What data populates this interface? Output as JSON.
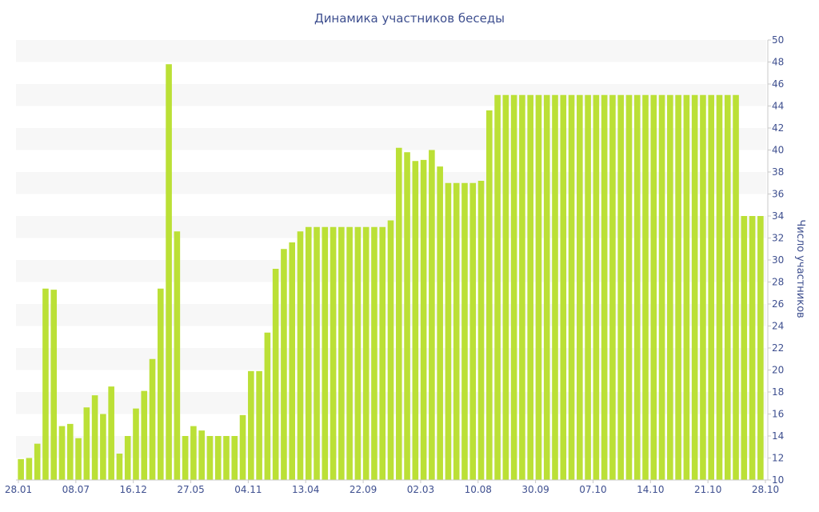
{
  "chart_data": {
    "type": "bar",
    "title": "Динамика участников беседы",
    "xlabel": "",
    "ylabel": "Число участников",
    "ylim": [
      10,
      50
    ],
    "yticks": [
      10,
      12,
      14,
      16,
      18,
      20,
      22,
      24,
      26,
      28,
      30,
      32,
      34,
      36,
      38,
      40,
      42,
      44,
      46,
      48,
      50
    ],
    "y_axis_position": "right",
    "x_tick_labels": [
      "28.01",
      "08.07",
      "16.12",
      "27.05",
      "04.11",
      "13.04",
      "22.09",
      "02.03",
      "10.08",
      "30.09",
      "07.10",
      "14.10",
      "21.10",
      "28.10"
    ],
    "grid": "alternating horizontal bands",
    "colors": {
      "bar": "#bbe036",
      "band": "#f7f7f7",
      "text": "#3e4f8f"
    },
    "values": [
      11.9,
      12.0,
      13.3,
      27.4,
      27.3,
      14.9,
      15.1,
      13.8,
      16.6,
      17.7,
      16.0,
      18.5,
      12.4,
      14.0,
      16.5,
      18.1,
      21.0,
      27.4,
      47.8,
      32.6,
      14.0,
      14.9,
      14.5,
      14.0,
      14.0,
      14.0,
      14.0,
      15.9,
      19.9,
      19.9,
      23.4,
      29.2,
      31.0,
      31.6,
      32.6,
      33.0,
      33.0,
      33.0,
      33.0,
      33.0,
      33.0,
      33.0,
      33.0,
      33.0,
      33.0,
      33.6,
      40.2,
      39.8,
      39.0,
      39.1,
      40.0,
      38.5,
      37.0,
      37.0,
      37.0,
      37.0,
      37.2,
      43.6,
      45.0,
      45.0,
      45.0,
      45.0,
      45.0,
      45.0,
      45.0,
      45.0,
      45.0,
      45.0,
      45.0,
      45.0,
      45.0,
      45.0,
      45.0,
      45.0,
      45.0,
      45.0,
      45.0,
      45.0,
      45.0,
      45.0,
      45.0,
      45.0,
      45.0,
      45.0,
      45.0,
      45.0,
      45.0,
      45.0,
      34.0,
      34.0,
      34.0
    ]
  }
}
